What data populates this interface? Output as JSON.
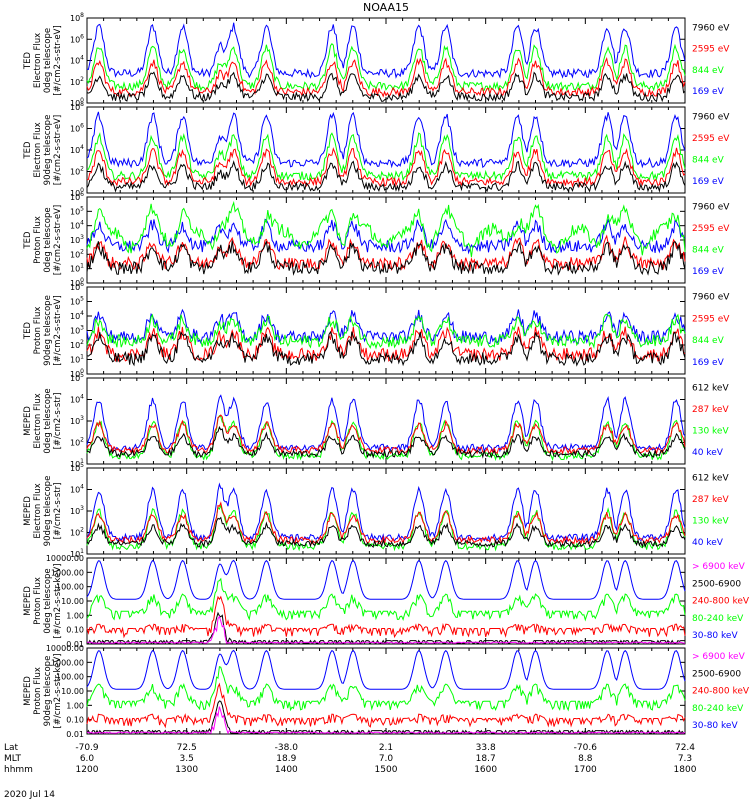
{
  "title": "NOAA15",
  "date_label": "2020 Jul 14",
  "footer": {
    "row_labels": [
      "Lat",
      "MLT",
      "hhmm"
    ],
    "lat_ticks": [
      "-70.9",
      "72.5",
      "-38.0",
      "2.1",
      "33.8",
      "-70.6",
      "72.4"
    ],
    "mlt_ticks": [
      "6.0",
      "3.5",
      "18.9",
      "7.0",
      "18.7",
      "8.8",
      "7.3"
    ],
    "hhmm_ticks": [
      "1200",
      "1300",
      "1400",
      "1500",
      "1600",
      "1700",
      "1800"
    ]
  },
  "colors": {
    "black": "#000000",
    "red": "#ff0000",
    "green": "#00ff00",
    "blue": "#0000ff",
    "magenta": "#ff00ff"
  },
  "chart_data": [
    {
      "type": "line",
      "ylabel": [
        "TED",
        "Electron Flux",
        "0deg telescope",
        "[#/cm2-s-str-eV]"
      ],
      "yscale": "log",
      "ytick_labels": [
        "10^0",
        "10^2",
        "10^4",
        "10^6",
        "10^8"
      ],
      "ylim": [
        1,
        100000000
      ],
      "xlim": [
        1200,
        1800
      ],
      "series": [
        {
          "name": "7960 eV",
          "color": "#000000"
        },
        {
          "name": "2595 eV",
          "color": "#ff0000"
        },
        {
          "name": "844 eV",
          "color": "#00ff00"
        },
        {
          "name": "169 eV",
          "color": "#0000ff"
        }
      ]
    },
    {
      "type": "line",
      "ylabel": [
        "TED",
        "Electron Flux",
        "90deg telescope",
        "[#/cm2-s-str-eV]"
      ],
      "yscale": "log",
      "ytick_labels": [
        "10^0",
        "10^2",
        "10^4",
        "10^6",
        "10^8"
      ],
      "ylim": [
        1,
        100000000
      ],
      "xlim": [
        1200,
        1800
      ],
      "series": [
        {
          "name": "7960 eV",
          "color": "#000000"
        },
        {
          "name": "2595 eV",
          "color": "#ff0000"
        },
        {
          "name": "844 eV",
          "color": "#00ff00"
        },
        {
          "name": "169 eV",
          "color": "#0000ff"
        }
      ]
    },
    {
      "type": "line",
      "ylabel": [
        "TED",
        "Proton Flux",
        "0deg telescope",
        "[#/cm2-s-str-eV]"
      ],
      "yscale": "log",
      "ytick_labels": [
        "10^0",
        "10^1",
        "10^2",
        "10^3",
        "10^4",
        "10^5",
        "10^6"
      ],
      "ylim": [
        1,
        1000000
      ],
      "xlim": [
        1200,
        1800
      ],
      "series": [
        {
          "name": "7960 eV",
          "color": "#000000"
        },
        {
          "name": "2595 eV",
          "color": "#ff0000"
        },
        {
          "name": "844 eV",
          "color": "#00ff00"
        },
        {
          "name": "169 eV",
          "color": "#0000ff"
        }
      ]
    },
    {
      "type": "line",
      "ylabel": [
        "TED",
        "Proton Flux",
        "90deg telescope",
        "[#/cm2-s-str-eV]"
      ],
      "yscale": "log",
      "ytick_labels": [
        "10^0",
        "10^1",
        "10^2",
        "10^3",
        "10^4",
        "10^5",
        "10^6"
      ],
      "ylim": [
        1,
        1000000
      ],
      "xlim": [
        1200,
        1800
      ],
      "series": [
        {
          "name": "7960 eV",
          "color": "#000000"
        },
        {
          "name": "2595 eV",
          "color": "#ff0000"
        },
        {
          "name": "844 eV",
          "color": "#00ff00"
        },
        {
          "name": "169 eV",
          "color": "#0000ff"
        }
      ]
    },
    {
      "type": "line",
      "ylabel": [
        "MEPED",
        "Electron Flux",
        "0deg telescope",
        "[#/cm2-s-str]"
      ],
      "yscale": "log",
      "ytick_labels": [
        "10^1",
        "10^2",
        "10^3",
        "10^4",
        "10^5"
      ],
      "ylim": [
        10,
        100000
      ],
      "xlim": [
        1200,
        1800
      ],
      "series": [
        {
          "name": "612 keV",
          "color": "#000000"
        },
        {
          "name": "287 keV",
          "color": "#ff0000"
        },
        {
          "name": "130 keV",
          "color": "#00ff00"
        },
        {
          "name": "40 keV",
          "color": "#0000ff"
        }
      ]
    },
    {
      "type": "line",
      "ylabel": [
        "MEPED",
        "Electron Flux",
        "90deg telescope",
        "[#/cm2-s-str]"
      ],
      "yscale": "log",
      "ytick_labels": [
        "10^1",
        "10^2",
        "10^3",
        "10^4",
        "10^5"
      ],
      "ylim": [
        10,
        100000
      ],
      "xlim": [
        1200,
        1800
      ],
      "series": [
        {
          "name": "612 keV",
          "color": "#000000"
        },
        {
          "name": "287 keV",
          "color": "#ff0000"
        },
        {
          "name": "130 keV",
          "color": "#00ff00"
        },
        {
          "name": "40 keV",
          "color": "#0000ff"
        }
      ]
    },
    {
      "type": "line",
      "ylabel": [
        "MEPED",
        "Proton Flux",
        "0deg telescope",
        "[#/cm2-s-str-keV]"
      ],
      "yscale": "log",
      "ytick_labels": [
        "0.01",
        "0.10",
        "1.00",
        "10.00",
        "100.00",
        "1000.00",
        "10000.00"
      ],
      "ylim": [
        0.01,
        10000
      ],
      "xlim": [
        1200,
        1800
      ],
      "series": [
        {
          "name": "> 6900 keV",
          "color": "#ff00ff"
        },
        {
          "name": "2500-6900",
          "color": "#000000"
        },
        {
          "name": "240-800 keV",
          "color": "#ff0000"
        },
        {
          "name": "80-240 keV",
          "color": "#00ff00"
        },
        {
          "name": "30-80 keV",
          "color": "#0000ff"
        }
      ]
    },
    {
      "type": "line",
      "ylabel": [
        "MEPED",
        "Proton Flux",
        "90deg telescope",
        "[#/cm2-s-str-keV]"
      ],
      "yscale": "log",
      "ytick_labels": [
        "0.01",
        "0.10",
        "1.00",
        "10.00",
        "100.00",
        "1000.00",
        "10000.00"
      ],
      "ylim": [
        0.01,
        10000
      ],
      "xlim": [
        1200,
        1800
      ],
      "series": [
        {
          "name": "> 6900 keV",
          "color": "#ff00ff"
        },
        {
          "name": "2500-6900",
          "color": "#000000"
        },
        {
          "name": "240-800 keV",
          "color": "#ff0000"
        },
        {
          "name": "80-240 keV",
          "color": "#00ff00"
        },
        {
          "name": "30-80 keV",
          "color": "#0000ff"
        }
      ]
    }
  ]
}
